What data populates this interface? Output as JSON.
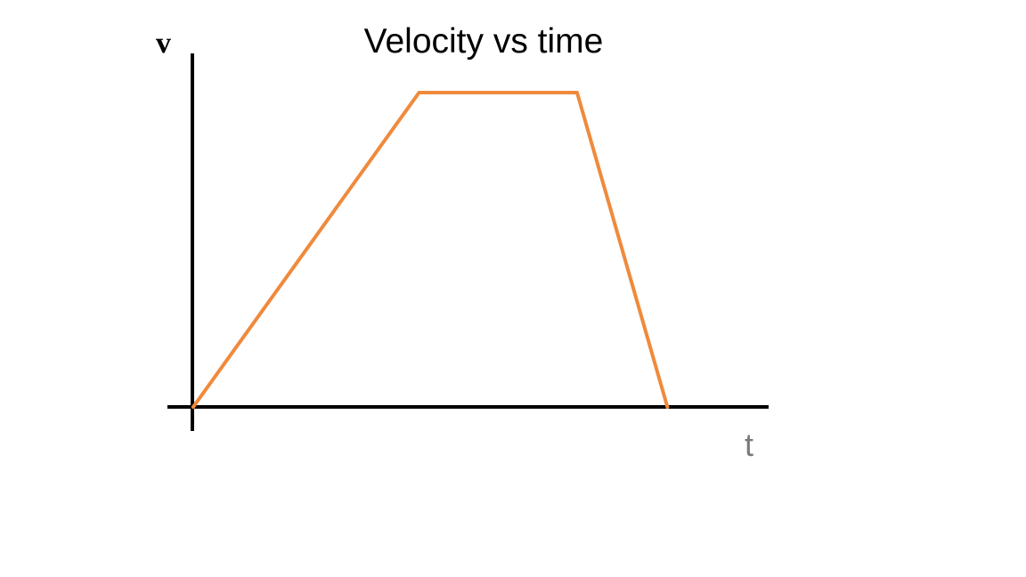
{
  "chart_data": {
    "type": "line",
    "title": "Velocity vs time",
    "xlabel": "t",
    "ylabel": "v",
    "grid": false,
    "series": [
      {
        "x": [
          0,
          5,
          8.5,
          10.5
        ],
        "y": [
          0,
          1,
          1,
          0
        ]
      }
    ],
    "xlim": [
      0,
      12.5
    ],
    "ylim": [
      0,
      1
    ],
    "colors": {
      "line": "#ef8a3c",
      "axes": "#000000",
      "xlabel": "#7a7a7a"
    }
  }
}
